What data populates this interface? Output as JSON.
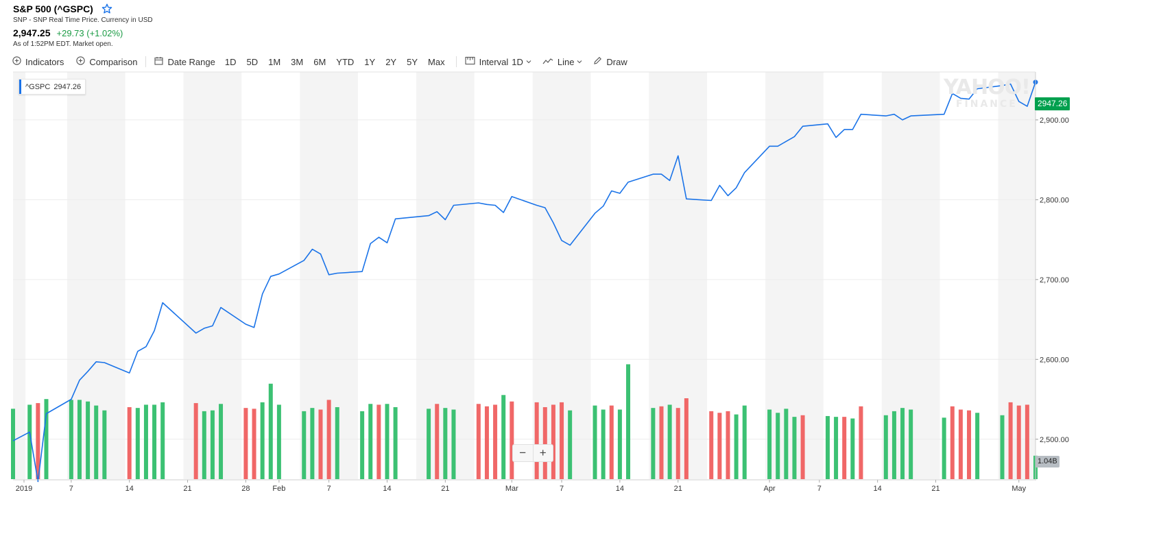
{
  "header": {
    "title": "S&P 500 (^GSPC)",
    "source": "SNP - SNP Real Time Price. Currency in USD",
    "price": "2,947.25",
    "change": "+29.73 (+1.02%)",
    "as_of": "As of 1:52PM EDT. Market open."
  },
  "toolbar": {
    "indicators": "Indicators",
    "comparison": "Comparison",
    "date_range": "Date Range",
    "ranges": [
      "1D",
      "5D",
      "1M",
      "3M",
      "6M",
      "YTD",
      "1Y",
      "2Y",
      "5Y",
      "Max"
    ],
    "interval_label": "Interval",
    "interval_value": "1D",
    "chart_type": "Line",
    "draw": "Draw"
  },
  "legend": {
    "symbol": "^GSPC",
    "value": "2947.26"
  },
  "last_price_tag": "2947.26",
  "volume_tag": "1.04B",
  "watermark": {
    "main": "YAHOO!",
    "sub": "FINANCE"
  },
  "zoom": {
    "minus": "−",
    "plus": "+"
  },
  "colors": {
    "line": "#1a73e8",
    "volume_up": "#3cc173",
    "volume_down": "#f06767",
    "last_tag": "#00a04e",
    "change": "#1b9b45",
    "band": "#f4f4f4"
  },
  "chart_data": {
    "type": "line",
    "title": "S&P 500 (^GSPC)",
    "y_axis_position": "right",
    "ylim": [
      2450,
      2960
    ],
    "yticks": [
      2500,
      2600,
      2700,
      2800,
      2900
    ],
    "ytick_labels": [
      "2,500.00",
      "2,600.00",
      "2,700.00",
      "2,800.00",
      "2,900.00"
    ],
    "grid": true,
    "xlim": [
      "2018-12-31",
      "2019-05-03"
    ],
    "xticks": [
      {
        "date": "2019-01-01",
        "label": "2019"
      },
      {
        "date": "2019-01-07",
        "label": "7"
      },
      {
        "date": "2019-01-14",
        "label": "14"
      },
      {
        "date": "2019-01-21",
        "label": "21"
      },
      {
        "date": "2019-01-28",
        "label": "28"
      },
      {
        "date": "2019-02-01",
        "label": "Feb"
      },
      {
        "date": "2019-02-07",
        "label": "7"
      },
      {
        "date": "2019-02-14",
        "label": "14"
      },
      {
        "date": "2019-02-21",
        "label": "21"
      },
      {
        "date": "2019-03-01",
        "label": "Mar"
      },
      {
        "date": "2019-03-07",
        "label": "7"
      },
      {
        "date": "2019-03-14",
        "label": "14"
      },
      {
        "date": "2019-03-21",
        "label": "21"
      },
      {
        "date": "2019-04-01",
        "label": "Apr"
      },
      {
        "date": "2019-04-07",
        "label": "7"
      },
      {
        "date": "2019-04-14",
        "label": "14"
      },
      {
        "date": "2019-04-21",
        "label": "21"
      },
      {
        "date": "2019-05-01",
        "label": "May"
      }
    ],
    "week_bands": [
      [
        "2018-12-31",
        "2019-01-01"
      ],
      [
        "2019-01-07",
        "2019-01-13"
      ],
      [
        "2019-01-21",
        "2019-01-27"
      ],
      [
        "2019-02-04",
        "2019-02-10"
      ],
      [
        "2019-02-18",
        "2019-02-24"
      ],
      [
        "2019-03-04",
        "2019-03-10"
      ],
      [
        "2019-03-18",
        "2019-03-24"
      ],
      [
        "2019-04-01",
        "2019-04-07"
      ],
      [
        "2019-04-15",
        "2019-04-21"
      ],
      [
        "2019-04-29",
        "2019-05-03"
      ]
    ],
    "series": [
      {
        "points": [
          [
            "2018-12-31",
            2498
          ],
          [
            "2019-01-02",
            2509
          ],
          [
            "2019-01-03",
            2447
          ],
          [
            "2019-01-04",
            2532
          ],
          [
            "2019-01-07",
            2550
          ],
          [
            "2019-01-08",
            2574
          ],
          [
            "2019-01-09",
            2585
          ],
          [
            "2019-01-10",
            2597
          ],
          [
            "2019-01-11",
            2596
          ],
          [
            "2019-01-14",
            2583
          ],
          [
            "2019-01-15",
            2610
          ],
          [
            "2019-01-16",
            2616
          ],
          [
            "2019-01-17",
            2636
          ],
          [
            "2019-01-18",
            2671
          ],
          [
            "2019-01-22",
            2633
          ],
          [
            "2019-01-23",
            2639
          ],
          [
            "2019-01-24",
            2642
          ],
          [
            "2019-01-25",
            2665
          ],
          [
            "2019-01-28",
            2644
          ],
          [
            "2019-01-29",
            2640
          ],
          [
            "2019-01-30",
            2682
          ],
          [
            "2019-01-31",
            2704
          ],
          [
            "2019-02-01",
            2707
          ],
          [
            "2019-02-04",
            2724
          ],
          [
            "2019-02-05",
            2738
          ],
          [
            "2019-02-06",
            2732
          ],
          [
            "2019-02-07",
            2706
          ],
          [
            "2019-02-08",
            2708
          ],
          [
            "2019-02-11",
            2710
          ],
          [
            "2019-02-12",
            2745
          ],
          [
            "2019-02-13",
            2753
          ],
          [
            "2019-02-14",
            2746
          ],
          [
            "2019-02-15",
            2776
          ],
          [
            "2019-02-19",
            2780
          ],
          [
            "2019-02-20",
            2785
          ],
          [
            "2019-02-21",
            2775
          ],
          [
            "2019-02-22",
            2793
          ],
          [
            "2019-02-25",
            2796
          ],
          [
            "2019-02-26",
            2794
          ],
          [
            "2019-02-27",
            2793
          ],
          [
            "2019-02-28",
            2784
          ],
          [
            "2019-03-01",
            2804
          ],
          [
            "2019-03-04",
            2793
          ],
          [
            "2019-03-05",
            2790
          ],
          [
            "2019-03-06",
            2771
          ],
          [
            "2019-03-07",
            2749
          ],
          [
            "2019-03-08",
            2743
          ],
          [
            "2019-03-11",
            2783
          ],
          [
            "2019-03-12",
            2792
          ],
          [
            "2019-03-13",
            2811
          ],
          [
            "2019-03-14",
            2808
          ],
          [
            "2019-03-15",
            2822
          ],
          [
            "2019-03-18",
            2832
          ],
          [
            "2019-03-19",
            2832
          ],
          [
            "2019-03-20",
            2824
          ],
          [
            "2019-03-21",
            2855
          ],
          [
            "2019-03-22",
            2801
          ],
          [
            "2019-03-25",
            2799
          ],
          [
            "2019-03-26",
            2818
          ],
          [
            "2019-03-27",
            2805
          ],
          [
            "2019-03-28",
            2815
          ],
          [
            "2019-03-29",
            2834
          ],
          [
            "2019-04-01",
            2867
          ],
          [
            "2019-04-02",
            2867
          ],
          [
            "2019-04-03",
            2873
          ],
          [
            "2019-04-04",
            2879
          ],
          [
            "2019-04-05",
            2892
          ],
          [
            "2019-04-08",
            2895
          ],
          [
            "2019-04-09",
            2878
          ],
          [
            "2019-04-10",
            2888
          ],
          [
            "2019-04-11",
            2888
          ],
          [
            "2019-04-12",
            2907
          ],
          [
            "2019-04-15",
            2905
          ],
          [
            "2019-04-16",
            2907
          ],
          [
            "2019-04-17",
            2900
          ],
          [
            "2019-04-18",
            2905
          ],
          [
            "2019-04-22",
            2907
          ],
          [
            "2019-04-23",
            2933
          ],
          [
            "2019-04-24",
            2927
          ],
          [
            "2019-04-25",
            2926
          ],
          [
            "2019-04-26",
            2939
          ],
          [
            "2019-04-29",
            2943
          ],
          [
            "2019-04-30",
            2945
          ],
          [
            "2019-05-01",
            2923
          ],
          [
            "2019-05-02",
            2917
          ],
          [
            "2019-05-03",
            2947.26
          ]
        ]
      }
    ],
    "volume": {
      "max_label": "1.04B",
      "up": [
        true,
        true,
        false,
        true,
        true,
        true,
        true,
        true,
        true,
        false,
        true,
        true,
        true,
        true,
        false,
        true,
        true,
        true,
        false,
        false,
        true,
        true,
        true,
        true,
        true,
        false,
        false,
        true,
        true,
        true,
        false,
        true,
        true,
        true,
        false,
        true,
        true,
        false,
        false,
        false,
        true,
        false,
        false,
        false,
        false,
        false,
        true,
        true,
        true,
        false,
        true,
        true,
        true,
        false,
        true,
        false,
        false,
        false,
        false,
        false,
        true,
        true,
        true,
        true,
        true,
        true,
        false,
        true,
        true,
        false,
        true,
        false,
        true,
        true,
        true,
        true,
        true,
        false,
        false,
        false,
        true,
        true,
        false,
        false,
        false,
        true
      ],
      "relative": [
        0.87,
        0.92,
        0.94,
        0.99,
        0.98,
        0.98,
        0.96,
        0.91,
        0.85,
        0.89,
        0.88,
        0.92,
        0.92,
        0.95,
        0.94,
        0.84,
        0.85,
        0.93,
        0.88,
        0.87,
        0.95,
        1.18,
        0.92,
        0.84,
        0.88,
        0.86,
        0.98,
        0.89,
        0.84,
        0.93,
        0.92,
        0.93,
        0.89,
        0.87,
        0.93,
        0.88,
        0.86,
        0.93,
        0.9,
        0.92,
        1.04,
        0.96,
        0.95,
        0.89,
        0.92,
        0.95,
        0.85,
        0.91,
        0.86,
        0.91,
        0.86,
        1.42,
        0.88,
        0.9,
        0.92,
        0.88,
        1.0,
        0.84,
        0.82,
        0.84,
        0.8,
        0.91,
        0.86,
        0.82,
        0.87,
        0.77,
        0.79,
        0.78,
        0.77,
        0.77,
        0.75,
        0.9,
        0.79,
        0.84,
        0.88,
        0.86,
        0.76,
        0.9,
        0.86,
        0.85,
        0.82,
        0.79,
        0.95,
        0.91,
        0.92,
        0.29
      ]
    }
  }
}
